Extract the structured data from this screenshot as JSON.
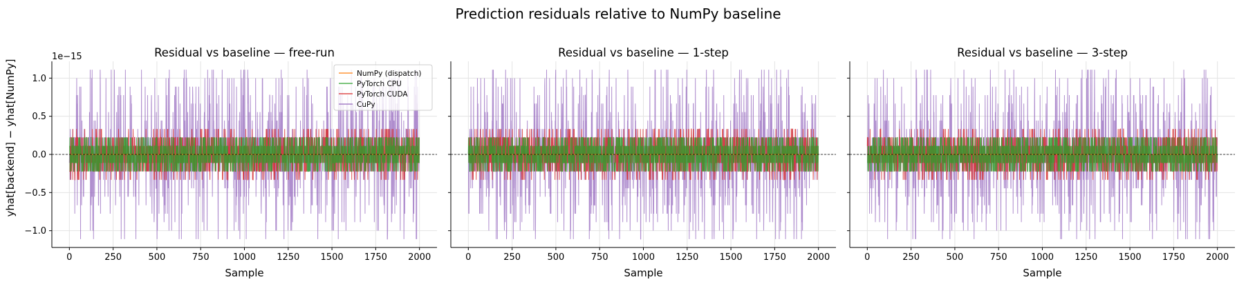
{
  "figure": {
    "suptitle": "Prediction residuals relative to NumPy baseline",
    "ylabel": "yhat[backend] − yhat[NumPy]",
    "offset_label": "1e−15"
  },
  "chart_data": [
    {
      "type": "line",
      "title": "Residual vs baseline — free-run",
      "xlabel": "Sample",
      "ylabel": "yhat[backend] − yhat[NumPy]",
      "xlim": [
        -100,
        2100
      ],
      "ylim": [
        -1.22,
        1.22
      ],
      "y_scale_exponent": -15,
      "xticks": [
        0,
        250,
        500,
        750,
        1000,
        1250,
        1500,
        1750,
        2000
      ],
      "yticks": [
        -1.0,
        -0.5,
        0.0,
        0.5,
        1.0
      ],
      "ytick_labels": [
        "−1.0",
        "−0.5",
        "0.0",
        "0.5",
        "1.0"
      ],
      "grid": true,
      "reference_line_y": 0,
      "legend_location": "top-right",
      "n_samples": 2000,
      "series": [
        {
          "name": "NumPy (dispatch)",
          "color": "#ff7f0e",
          "amplitude": 0.0
        },
        {
          "name": "PyTorch CPU",
          "color": "#2ca02c",
          "amplitude": 0.22
        },
        {
          "name": "PyTorch CUDA",
          "color": "#d62728",
          "amplitude": 0.33
        },
        {
          "name": "CuPy",
          "color": "#9467bd",
          "amplitude": 1.11
        }
      ]
    },
    {
      "type": "line",
      "title": "Residual vs baseline — 1-step",
      "xlabel": "Sample",
      "xlim": [
        -100,
        2100
      ],
      "ylim": [
        -1.22,
        1.22
      ],
      "y_scale_exponent": -15,
      "xticks": [
        0,
        250,
        500,
        750,
        1000,
        1250,
        1500,
        1750,
        2000
      ],
      "grid": true,
      "reference_line_y": 0,
      "n_samples": 2000,
      "series": [
        {
          "name": "NumPy (dispatch)",
          "color": "#ff7f0e",
          "amplitude": 0.0
        },
        {
          "name": "PyTorch CPU",
          "color": "#2ca02c",
          "amplitude": 0.22
        },
        {
          "name": "PyTorch CUDA",
          "color": "#d62728",
          "amplitude": 0.33
        },
        {
          "name": "CuPy",
          "color": "#9467bd",
          "amplitude": 1.11
        }
      ]
    },
    {
      "type": "line",
      "title": "Residual vs baseline — 3-step",
      "xlabel": "Sample",
      "xlim": [
        -100,
        2100
      ],
      "ylim": [
        -1.22,
        1.22
      ],
      "y_scale_exponent": -15,
      "xticks": [
        0,
        250,
        500,
        750,
        1000,
        1250,
        1500,
        1750,
        2000
      ],
      "grid": true,
      "reference_line_y": 0,
      "n_samples": 2000,
      "series": [
        {
          "name": "NumPy (dispatch)",
          "color": "#ff7f0e",
          "amplitude": 0.0
        },
        {
          "name": "PyTorch CPU",
          "color": "#2ca02c",
          "amplitude": 0.22
        },
        {
          "name": "PyTorch CUDA",
          "color": "#d62728",
          "amplitude": 0.33
        },
        {
          "name": "CuPy",
          "color": "#9467bd",
          "amplitude": 1.11
        }
      ]
    }
  ]
}
